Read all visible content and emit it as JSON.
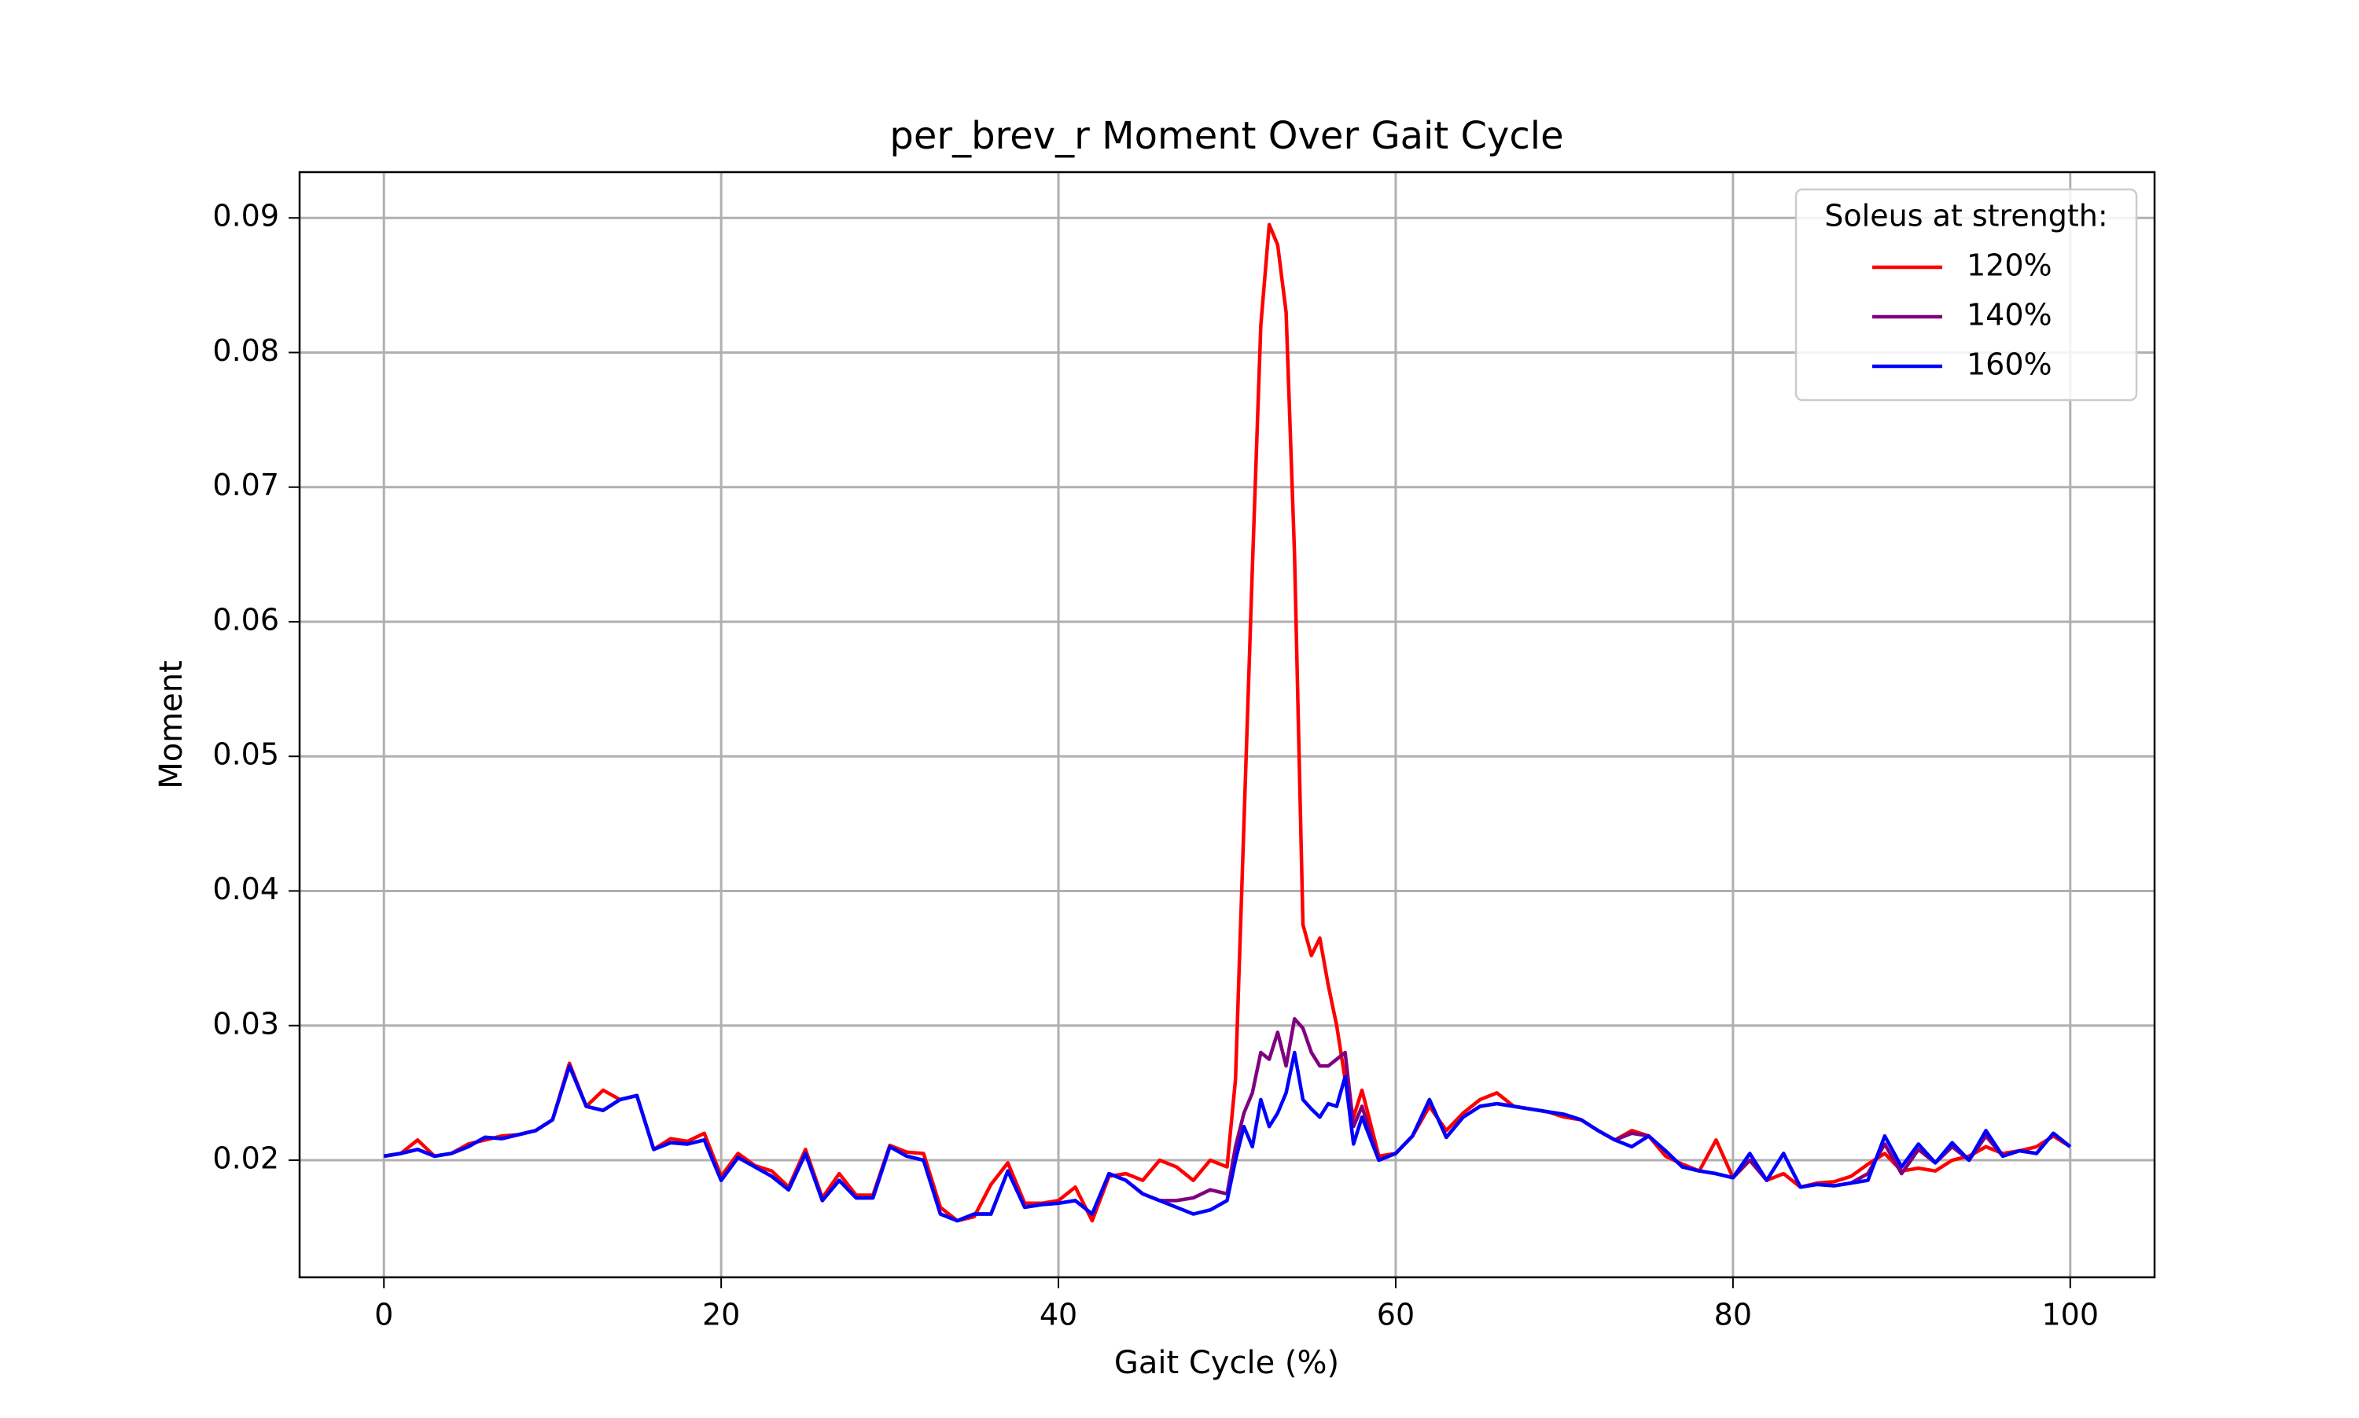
{
  "chart_data": {
    "type": "line",
    "title": "per_brev_r Moment Over Gait Cycle",
    "xlabel": "Gait Cycle (%)",
    "ylabel": "Moment",
    "legend_title": "Soleus at strength:",
    "legend": "upper right",
    "grid": true,
    "xlim": [
      -5,
      105
    ],
    "ylim": [
      0.0113,
      0.0934
    ],
    "xticks": [
      0,
      20,
      40,
      60,
      80,
      100
    ],
    "yticks": [
      0.02,
      0.03,
      0.04,
      0.05,
      0.06,
      0.07,
      0.08,
      0.09
    ],
    "x": [
      0,
      1,
      2,
      3,
      4,
      5,
      6,
      7,
      8,
      9,
      10,
      11,
      12,
      13,
      14,
      15,
      16,
      17,
      18,
      19,
      20,
      21,
      22,
      23,
      24,
      25,
      26,
      27,
      28,
      29,
      30,
      31,
      32,
      33,
      34,
      35,
      36,
      37,
      38,
      39,
      40,
      41,
      42,
      43,
      44,
      45,
      46,
      47,
      48,
      49,
      50,
      50.5,
      51,
      51.5,
      52,
      52.5,
      53,
      53.5,
      54,
      54.5,
      55,
      55.5,
      56,
      56.5,
      57,
      57.5,
      58,
      59,
      60,
      61,
      62,
      63,
      64,
      65,
      66,
      67,
      68,
      69,
      70,
      71,
      72,
      73,
      74,
      75,
      76,
      77,
      78,
      79,
      80,
      81,
      82,
      83,
      84,
      85,
      86,
      87,
      88,
      89,
      90,
      91,
      92,
      93,
      94,
      95,
      96,
      97,
      98,
      99,
      100
    ],
    "series": [
      {
        "name": "120%",
        "color": "#ff0000",
        "values": [
          0.0203,
          0.0205,
          0.0215,
          0.0203,
          0.0205,
          0.0212,
          0.0215,
          0.0218,
          0.0219,
          0.0222,
          0.023,
          0.0272,
          0.024,
          0.0252,
          0.0245,
          0.0248,
          0.0208,
          0.0216,
          0.0214,
          0.022,
          0.0188,
          0.0205,
          0.0196,
          0.0192,
          0.018,
          0.0208,
          0.0172,
          0.019,
          0.0174,
          0.0174,
          0.0211,
          0.0206,
          0.0205,
          0.0165,
          0.0155,
          0.0158,
          0.0182,
          0.0198,
          0.0168,
          0.0168,
          0.017,
          0.018,
          0.0155,
          0.0188,
          0.019,
          0.0185,
          0.02,
          0.0195,
          0.0185,
          0.02,
          0.0195,
          0.026,
          0.045,
          0.064,
          0.082,
          0.0895,
          0.088,
          0.083,
          0.065,
          0.0375,
          0.0352,
          0.0365,
          0.033,
          0.03,
          0.026,
          0.0232,
          0.0252,
          0.0203,
          0.0205,
          0.0218,
          0.024,
          0.0222,
          0.0235,
          0.0245,
          0.025,
          0.024,
          0.0238,
          0.0236,
          0.0232,
          0.023,
          0.0222,
          0.0215,
          0.0222,
          0.0218,
          0.0203,
          0.0197,
          0.0192,
          0.0215,
          0.0187,
          0.02,
          0.0185,
          0.019,
          0.018,
          0.0183,
          0.0184,
          0.0188,
          0.0197,
          0.0205,
          0.0192,
          0.0194,
          0.0192,
          0.02,
          0.0203,
          0.021,
          0.0205,
          0.0207,
          0.021,
          0.0218,
          0.021
        ]
      },
      {
        "name": "140%",
        "color": "#800080",
        "values": [
          0.0203,
          0.0205,
          0.0208,
          0.0203,
          0.0205,
          0.021,
          0.0217,
          0.0216,
          0.0219,
          0.0222,
          0.023,
          0.027,
          0.024,
          0.0237,
          0.0245,
          0.0248,
          0.0208,
          0.0213,
          0.0212,
          0.0215,
          0.0185,
          0.0202,
          0.0195,
          0.0188,
          0.0178,
          0.0205,
          0.017,
          0.0185,
          0.0172,
          0.0172,
          0.021,
          0.0203,
          0.02,
          0.016,
          0.0155,
          0.016,
          0.016,
          0.0192,
          0.0165,
          0.0167,
          0.0168,
          0.017,
          0.016,
          0.019,
          0.0185,
          0.0175,
          0.017,
          0.017,
          0.0172,
          0.0178,
          0.0175,
          0.021,
          0.0235,
          0.025,
          0.028,
          0.0275,
          0.0295,
          0.027,
          0.0305,
          0.0298,
          0.028,
          0.027,
          0.027,
          0.0275,
          0.028,
          0.0225,
          0.024,
          0.02,
          0.0205,
          0.0218,
          0.0245,
          0.0217,
          0.0232,
          0.024,
          0.0242,
          0.024,
          0.0238,
          0.0236,
          0.0234,
          0.023,
          0.0222,
          0.0215,
          0.022,
          0.0218,
          0.0207,
          0.0195,
          0.0192,
          0.019,
          0.0187,
          0.02,
          0.0185,
          0.0205,
          0.018,
          0.0182,
          0.0181,
          0.0183,
          0.019,
          0.0212,
          0.019,
          0.0208,
          0.0198,
          0.021,
          0.02,
          0.0218,
          0.0203,
          0.0207,
          0.0205,
          0.022,
          0.021
        ]
      },
      {
        "name": "160%",
        "color": "#0000ff",
        "values": [
          0.0203,
          0.0205,
          0.0208,
          0.0203,
          0.0205,
          0.021,
          0.0217,
          0.0216,
          0.0219,
          0.0222,
          0.023,
          0.027,
          0.024,
          0.0237,
          0.0245,
          0.0248,
          0.0208,
          0.0213,
          0.0212,
          0.0215,
          0.0185,
          0.0202,
          0.0195,
          0.0188,
          0.0178,
          0.0205,
          0.017,
          0.0185,
          0.0172,
          0.0172,
          0.021,
          0.0203,
          0.02,
          0.016,
          0.0155,
          0.016,
          0.016,
          0.0192,
          0.0165,
          0.0167,
          0.0168,
          0.017,
          0.016,
          0.019,
          0.0185,
          0.0175,
          0.017,
          0.0165,
          0.016,
          0.0163,
          0.017,
          0.02,
          0.0225,
          0.021,
          0.0245,
          0.0225,
          0.0235,
          0.025,
          0.028,
          0.0245,
          0.0238,
          0.0232,
          0.0242,
          0.024,
          0.0262,
          0.0212,
          0.0232,
          0.02,
          0.0205,
          0.0218,
          0.0245,
          0.0217,
          0.0232,
          0.024,
          0.0242,
          0.024,
          0.0238,
          0.0236,
          0.0234,
          0.023,
          0.0222,
          0.0215,
          0.021,
          0.0218,
          0.0207,
          0.0195,
          0.0192,
          0.019,
          0.0187,
          0.0205,
          0.0185,
          0.0205,
          0.018,
          0.0182,
          0.0181,
          0.0183,
          0.0185,
          0.0218,
          0.0195,
          0.0212,
          0.0198,
          0.0213,
          0.02,
          0.0222,
          0.0203,
          0.0207,
          0.0205,
          0.022,
          0.021
        ]
      }
    ]
  }
}
